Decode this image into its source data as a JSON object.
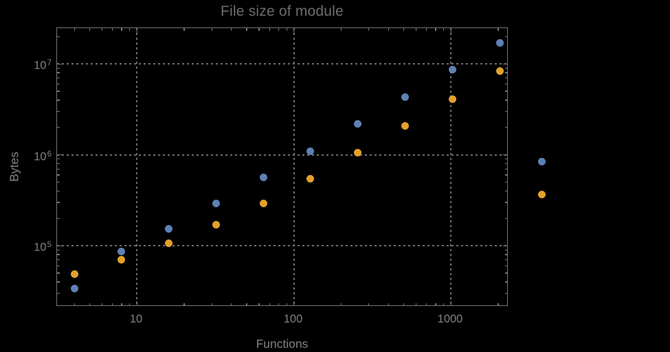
{
  "chart_data": {
    "type": "scatter",
    "title": "File size of module",
    "xlabel": "Functions",
    "ylabel": "Bytes",
    "x_scale": "log",
    "y_scale": "log",
    "background": "#000000",
    "xlim": [
      3.1,
      2340
    ],
    "ylim": [
      21500,
      24700000
    ],
    "x": [
      4,
      8,
      16,
      32,
      64,
      128,
      256,
      512,
      1024,
      2048
    ],
    "series": [
      {
        "name": "series-1-blue",
        "color": "#5E81B5",
        "values": [
          34000,
          87000,
          153000,
          290000,
          560000,
          1100000,
          2200000,
          4300000,
          8700000,
          17000000
        ]
      },
      {
        "name": "series-2-orange",
        "color": "#E3A02C",
        "values": [
          49000,
          70000,
          107000,
          170000,
          290000,
          540000,
          1060000,
          2060000,
          4100000,
          8300000
        ]
      }
    ],
    "xticks": {
      "major_values": [
        10,
        100,
        1000
      ],
      "labels": [
        "10",
        "100",
        "1000"
      ]
    },
    "yticks": {
      "base": "10",
      "major_exponents": [
        5,
        6,
        7
      ]
    },
    "grid": {
      "style": "dotted",
      "x_at": [
        10,
        100,
        1000
      ],
      "y_at": [
        100000,
        1000000,
        10000000
      ],
      "color": "#6f6f6f"
    },
    "legend": {
      "position": "right-of-plot",
      "labels_visible": false,
      "entries": [
        {
          "label": "",
          "color": "#5E81B5"
        },
        {
          "label": "",
          "color": "#E3A02C"
        }
      ]
    }
  },
  "colors": {
    "frame": "#767676",
    "title_text": "#6d6d6d",
    "tick_label_text": "#828282"
  }
}
